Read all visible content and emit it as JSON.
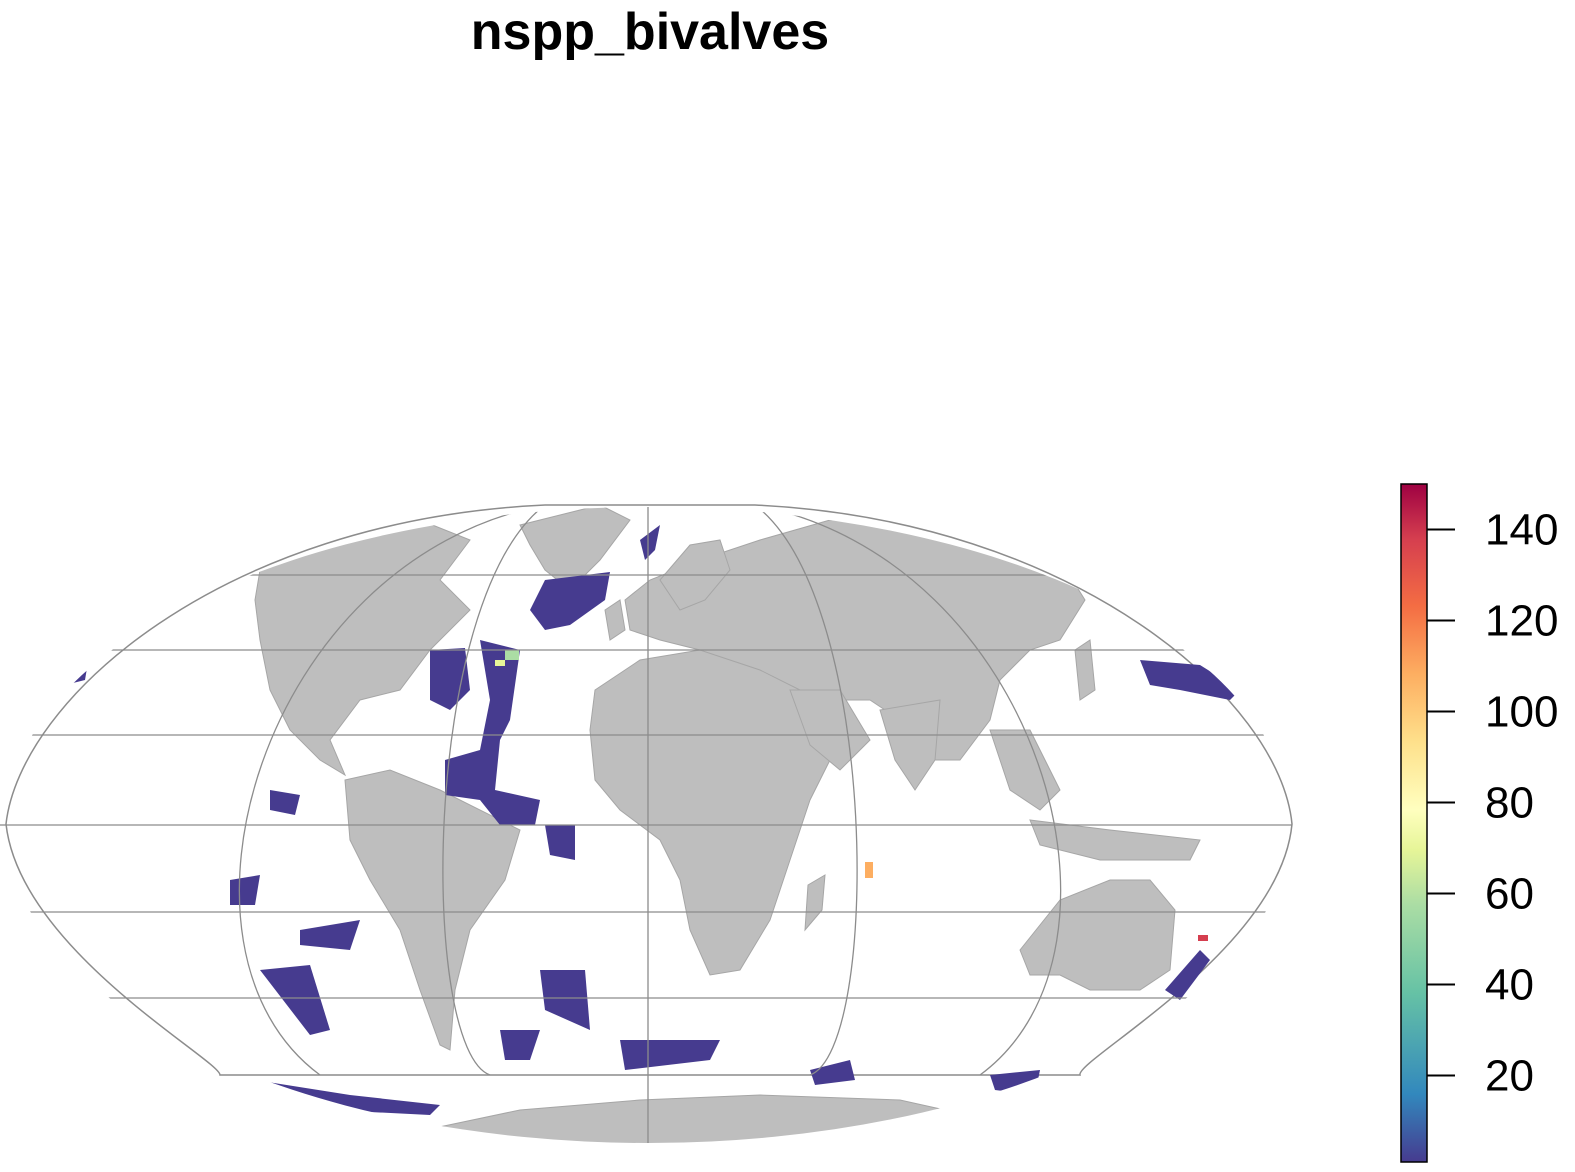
{
  "title": "nspp_bivalves",
  "colors": {
    "land": "#bebebe",
    "land_border": "#a6a6a6",
    "graticule": "#8c8c8c",
    "low_value": "#463b8f"
  },
  "legend": {
    "min": 1,
    "max": 150,
    "ticks": [
      "20",
      "40",
      "60",
      "80",
      "100",
      "120",
      "140"
    ],
    "tick_values": [
      20,
      40,
      60,
      80,
      100,
      120,
      140
    ],
    "palette": [
      "#5e4fa2",
      "#3288bd",
      "#66c2a5",
      "#abdda4",
      "#e6f598",
      "#ffffbf",
      "#fee08b",
      "#fdae61",
      "#f46d43",
      "#d53e4f",
      "#9e0142"
    ]
  }
}
